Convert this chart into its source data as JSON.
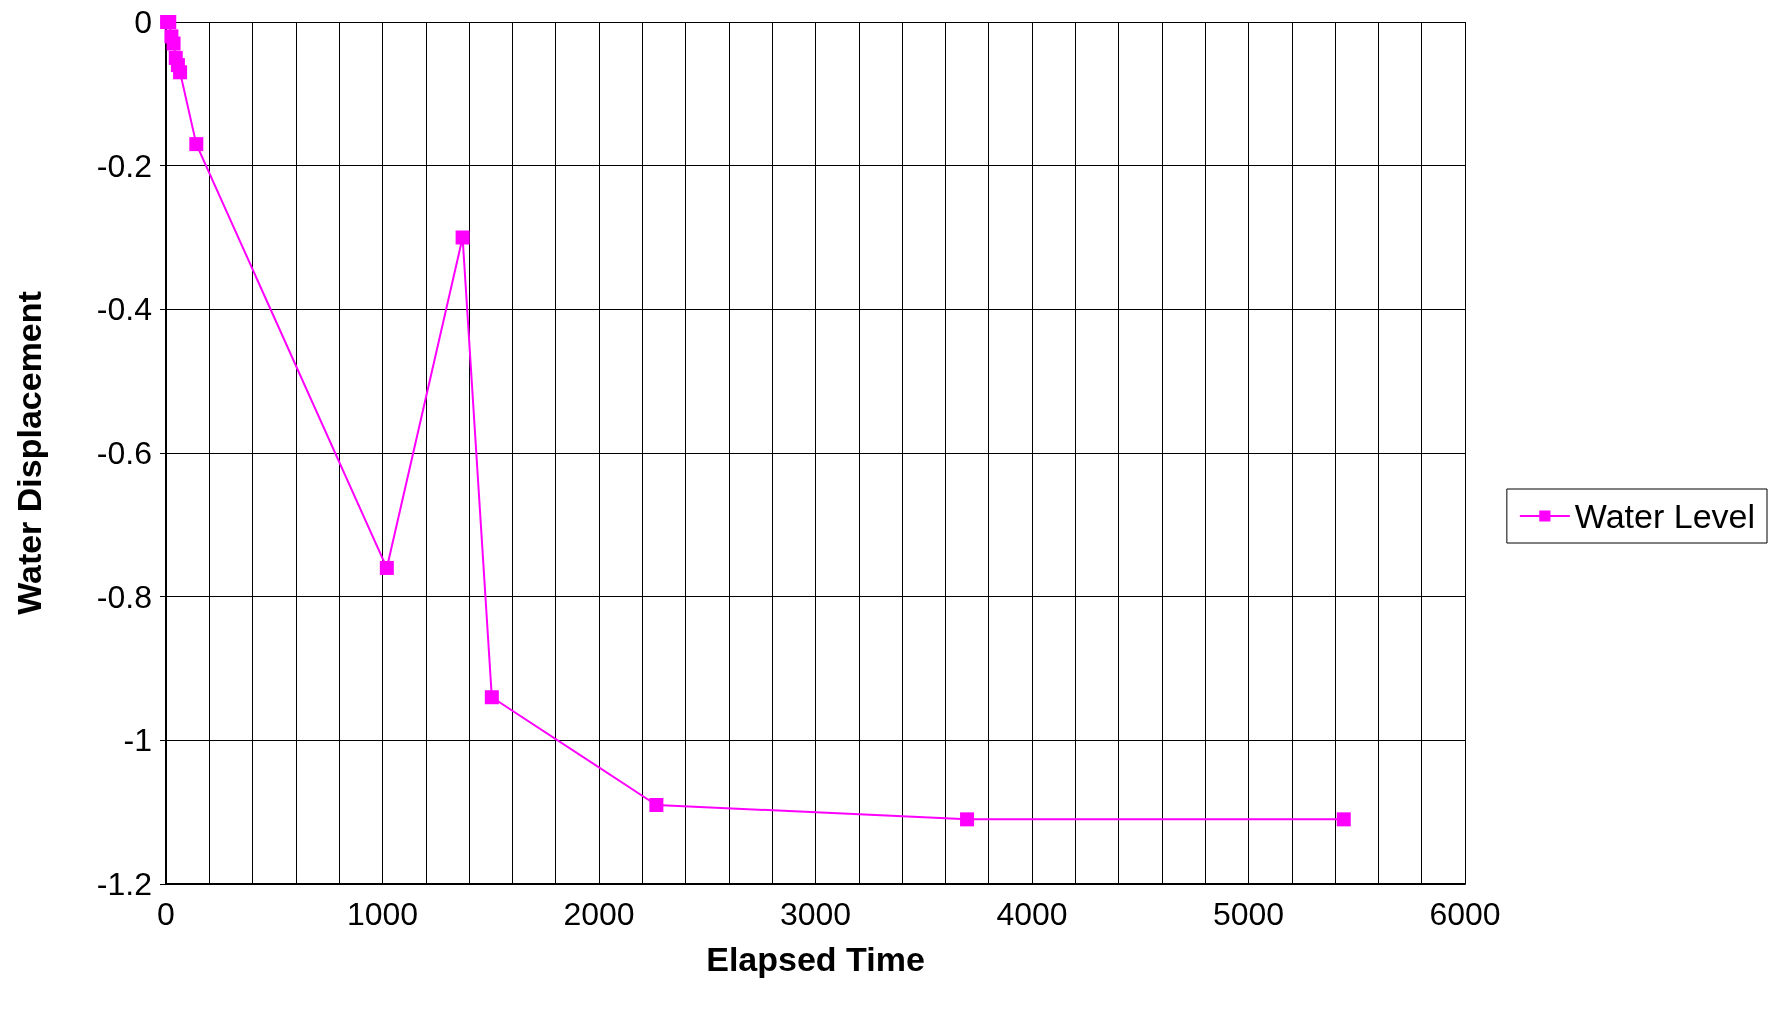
{
  "chart_data": {
    "type": "line",
    "xlabel": "Elapsed Time",
    "ylabel": "Water Displacement",
    "series": [
      {
        "name": "Water Level",
        "color": "#ff00ff",
        "x": [
          5,
          15,
          25,
          35,
          45,
          55,
          65,
          140,
          1020,
          1370,
          1505,
          2265,
          3700,
          5440
        ],
        "values": [
          0,
          0,
          -0.02,
          -0.03,
          -0.05,
          -0.06,
          -0.07,
          -0.17,
          -0.76,
          -0.3,
          -0.94,
          -1.09,
          -1.11,
          -1.11
        ]
      }
    ],
    "xlim": [
      0,
      6000
    ],
    "xticks": [
      0,
      {
        "value": 200,
        "label": null
      },
      {
        "value": 400,
        "label": null
      },
      {
        "value": 600,
        "label": null
      },
      {
        "value": 800,
        "label": null
      },
      1000,
      {
        "value": 1200,
        "label": null
      },
      {
        "value": 1400,
        "label": null
      },
      {
        "value": 1600,
        "label": null
      },
      {
        "value": 1800,
        "label": null
      },
      2000,
      {
        "value": 2200,
        "label": null
      },
      {
        "value": 2400,
        "label": null
      },
      {
        "value": 2600,
        "label": null
      },
      {
        "value": 2800,
        "label": null
      },
      3000,
      {
        "value": 3200,
        "label": null
      },
      {
        "value": 3400,
        "label": null
      },
      {
        "value": 3600,
        "label": null
      },
      {
        "value": 3800,
        "label": null
      },
      4000,
      {
        "value": 4200,
        "label": null
      },
      {
        "value": 4400,
        "label": null
      },
      {
        "value": 4600,
        "label": null
      },
      {
        "value": 4800,
        "label": null
      },
      5000,
      {
        "value": 5200,
        "label": null
      },
      {
        "value": 5400,
        "label": null
      },
      {
        "value": 5600,
        "label": null
      },
      {
        "value": 5800,
        "label": null
      },
      6000
    ],
    "ylim": [
      -1.2,
      0
    ],
    "yticks": [
      -1.2,
      -1,
      -0.8,
      -0.6,
      -0.4,
      -0.2,
      0
    ],
    "grid": true,
    "legend": "right",
    "marker": "square",
    "line_style": "solid"
  }
}
